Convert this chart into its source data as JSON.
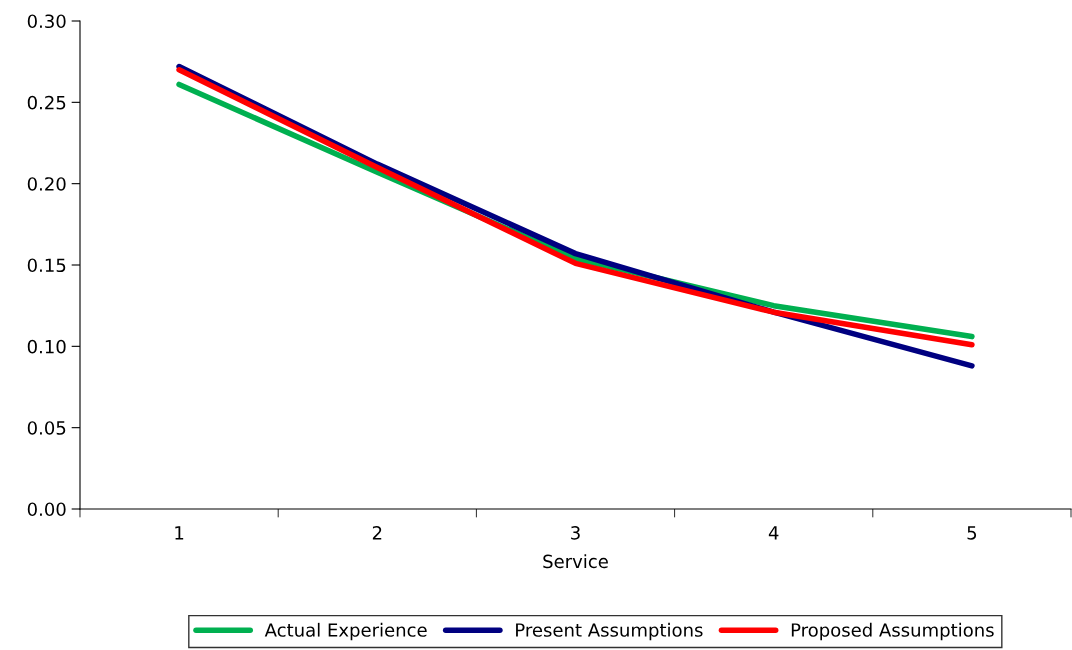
{
  "chart_data": {
    "type": "line",
    "xlabel": "Service",
    "categories": [
      "1",
      "2",
      "3",
      "4",
      "5"
    ],
    "series": [
      {
        "name": "Actual Experience",
        "color": "#00b050",
        "values": [
          0.261,
          0.207,
          0.154,
          0.125,
          0.106
        ]
      },
      {
        "name": "Present Assumptions",
        "color": "#000080",
        "values": [
          0.272,
          0.212,
          0.157,
          0.121,
          0.088
        ]
      },
      {
        "name": "Proposed Assumptions",
        "color": "#ff0000",
        "values": [
          0.27,
          0.21,
          0.151,
          0.121,
          0.101
        ]
      }
    ],
    "ylim": [
      0,
      0.3
    ],
    "yticks": [
      {
        "value": 0,
        "label": "0.00"
      },
      {
        "value": 0.05,
        "label": "0.05"
      },
      {
        "value": 0.1,
        "label": "0.10"
      },
      {
        "value": 0.15,
        "label": "0.15"
      },
      {
        "value": 0.2,
        "label": "0.20"
      },
      {
        "value": 0.25,
        "label": "0.25"
      },
      {
        "value": 0.3,
        "label": "0.30"
      }
    ],
    "grid": false,
    "legend": "bottom",
    "marker": "none",
    "line_style": "solid"
  }
}
